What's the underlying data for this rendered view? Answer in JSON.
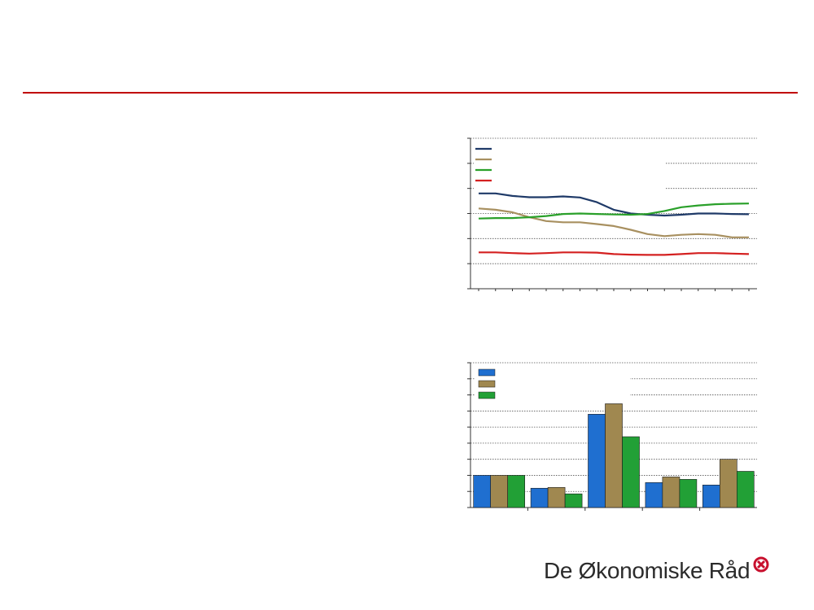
{
  "page": {
    "rule_color": "#c00000"
  },
  "chart_data": [
    {
      "type": "line",
      "title": "",
      "xlabel": "",
      "ylabel": "",
      "ylim": [
        0,
        6
      ],
      "grid": true,
      "legend_position": "top-left",
      "series": [
        {
          "name": "",
          "color": "#1f3a68",
          "values": [
            3.8,
            3.8,
            3.7,
            3.65,
            3.65,
            3.68,
            3.64,
            3.45,
            3.15,
            3.0,
            2.95,
            2.92,
            2.95,
            3.0,
            3.0,
            2.98,
            2.97
          ]
        },
        {
          "name": "",
          "color": "#a89060",
          "values": [
            3.2,
            3.15,
            3.05,
            2.85,
            2.7,
            2.65,
            2.65,
            2.58,
            2.5,
            2.35,
            2.18,
            2.1,
            2.15,
            2.18,
            2.15,
            2.05,
            2.05
          ]
        },
        {
          "name": "",
          "color": "#2aa02a",
          "values": [
            2.8,
            2.82,
            2.82,
            2.85,
            2.9,
            2.98,
            3.0,
            2.98,
            2.96,
            2.95,
            2.98,
            3.1,
            3.25,
            3.32,
            3.37,
            3.39,
            3.4
          ]
        },
        {
          "name": "",
          "color": "#d42020",
          "values": [
            1.45,
            1.45,
            1.42,
            1.4,
            1.42,
            1.45,
            1.45,
            1.44,
            1.38,
            1.36,
            1.35,
            1.35,
            1.38,
            1.42,
            1.42,
            1.4,
            1.38
          ]
        }
      ]
    },
    {
      "type": "bar",
      "title": "",
      "xlabel": "",
      "ylabel": "",
      "ylim": [
        0,
        9
      ],
      "grid": true,
      "legend_position": "top-left",
      "categories": [
        "",
        "",
        "",
        "",
        ""
      ],
      "series": [
        {
          "name": "",
          "color": "#1f6fd0",
          "values": [
            2.0,
            1.2,
            5.8,
            1.55,
            1.4
          ]
        },
        {
          "name": "",
          "color": "#a08850",
          "values": [
            2.0,
            1.25,
            6.45,
            1.9,
            3.0
          ]
        },
        {
          "name": "",
          "color": "#22a036",
          "values": [
            2.0,
            0.85,
            4.4,
            1.75,
            2.25
          ]
        }
      ]
    }
  ],
  "footer": {
    "brand_text": "De Økonomiske Råd",
    "logo_icon": "ring-cross-logo",
    "logo_color": "#c8102e"
  }
}
